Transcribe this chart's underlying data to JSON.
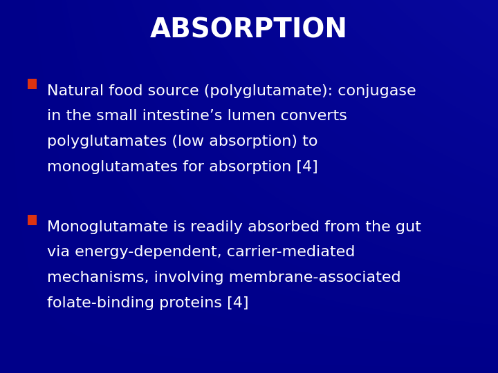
{
  "title": "ABSORPTION",
  "title_color": "#FFFFFF",
  "title_fontsize": 28,
  "title_fontweight": "bold",
  "background_color": "#000090",
  "bullet_color": "#DD3311",
  "text_color": "#FFFFFF",
  "bullet1_lines": [
    "Natural food source (polyglutamate): conjugase",
    "in the small intestine’s lumen converts",
    "polyglutamates (low absorption) to",
    "monoglutamates for absorption [4]"
  ],
  "bullet2_lines": [
    "Monoglutamate is readily absorbed from the gut",
    "via energy-dependent, carrier-mediated",
    "mechanisms, involving membrane-associated",
    "folate-binding proteins [4]"
  ],
  "body_fontsize": 16,
  "figsize": [
    7.2,
    5.4
  ],
  "dpi": 100
}
